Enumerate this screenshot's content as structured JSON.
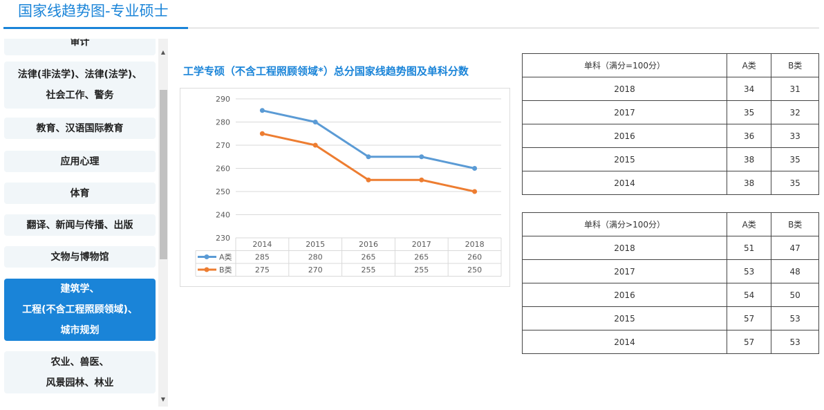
{
  "header": {
    "title": "国家线趋势图-专业硕士"
  },
  "sidebar": {
    "items": [
      {
        "lines": [
          "审计"
        ]
      },
      {
        "lines": [
          "法律(非法学)、法律(法学)、",
          "社会工作、警务"
        ]
      },
      {
        "lines": [
          "教育、汉语国际教育"
        ]
      },
      {
        "lines": [
          "应用心理"
        ]
      },
      {
        "lines": [
          "体育"
        ]
      },
      {
        "lines": [
          "翻译、新闻与传播、出版"
        ]
      },
      {
        "lines": [
          "文物与博物馆"
        ]
      },
      {
        "lines": [
          "建筑学、",
          "工程(不含工程照顾领域)、",
          "城市规划"
        ],
        "active": true
      },
      {
        "lines": [
          "农业、兽医、",
          "风景园林、林业"
        ]
      }
    ]
  },
  "chart": {
    "heading": "工学专硕（不含工程照顾领域*）总分国家线趋势图及单科分数"
  },
  "chart_data": {
    "type": "line",
    "title": "",
    "categories": [
      "2014",
      "2015",
      "2016",
      "2017",
      "2018"
    ],
    "series": [
      {
        "name": "A类",
        "values": [
          285,
          280,
          265,
          265,
          260
        ],
        "color": "#5b9bd5"
      },
      {
        "name": "B类",
        "values": [
          275,
          270,
          255,
          255,
          250
        ],
        "color": "#ed7d31"
      }
    ],
    "yticks": [
      230,
      240,
      250,
      260,
      270,
      280,
      290
    ],
    "ylim": [
      230,
      290
    ],
    "grid": true,
    "legend": "data-table"
  },
  "tables": [
    {
      "headers": [
        "单科（满分=100分）",
        "A类",
        "B类"
      ],
      "rows": [
        [
          "2018",
          "34",
          "31"
        ],
        [
          "2017",
          "35",
          "32"
        ],
        [
          "2016",
          "36",
          "33"
        ],
        [
          "2015",
          "38",
          "35"
        ],
        [
          "2014",
          "38",
          "35"
        ]
      ]
    },
    {
      "headers": [
        "单科（满分>100分）",
        "A类",
        "B类"
      ],
      "rows": [
        [
          "2018",
          "51",
          "47"
        ],
        [
          "2017",
          "53",
          "48"
        ],
        [
          "2016",
          "54",
          "50"
        ],
        [
          "2015",
          "57",
          "53"
        ],
        [
          "2014",
          "57",
          "53"
        ]
      ]
    }
  ],
  "colors": {
    "accent": "#1a84d8",
    "seriesA": "#5b9bd5",
    "seriesB": "#ed7d31"
  }
}
